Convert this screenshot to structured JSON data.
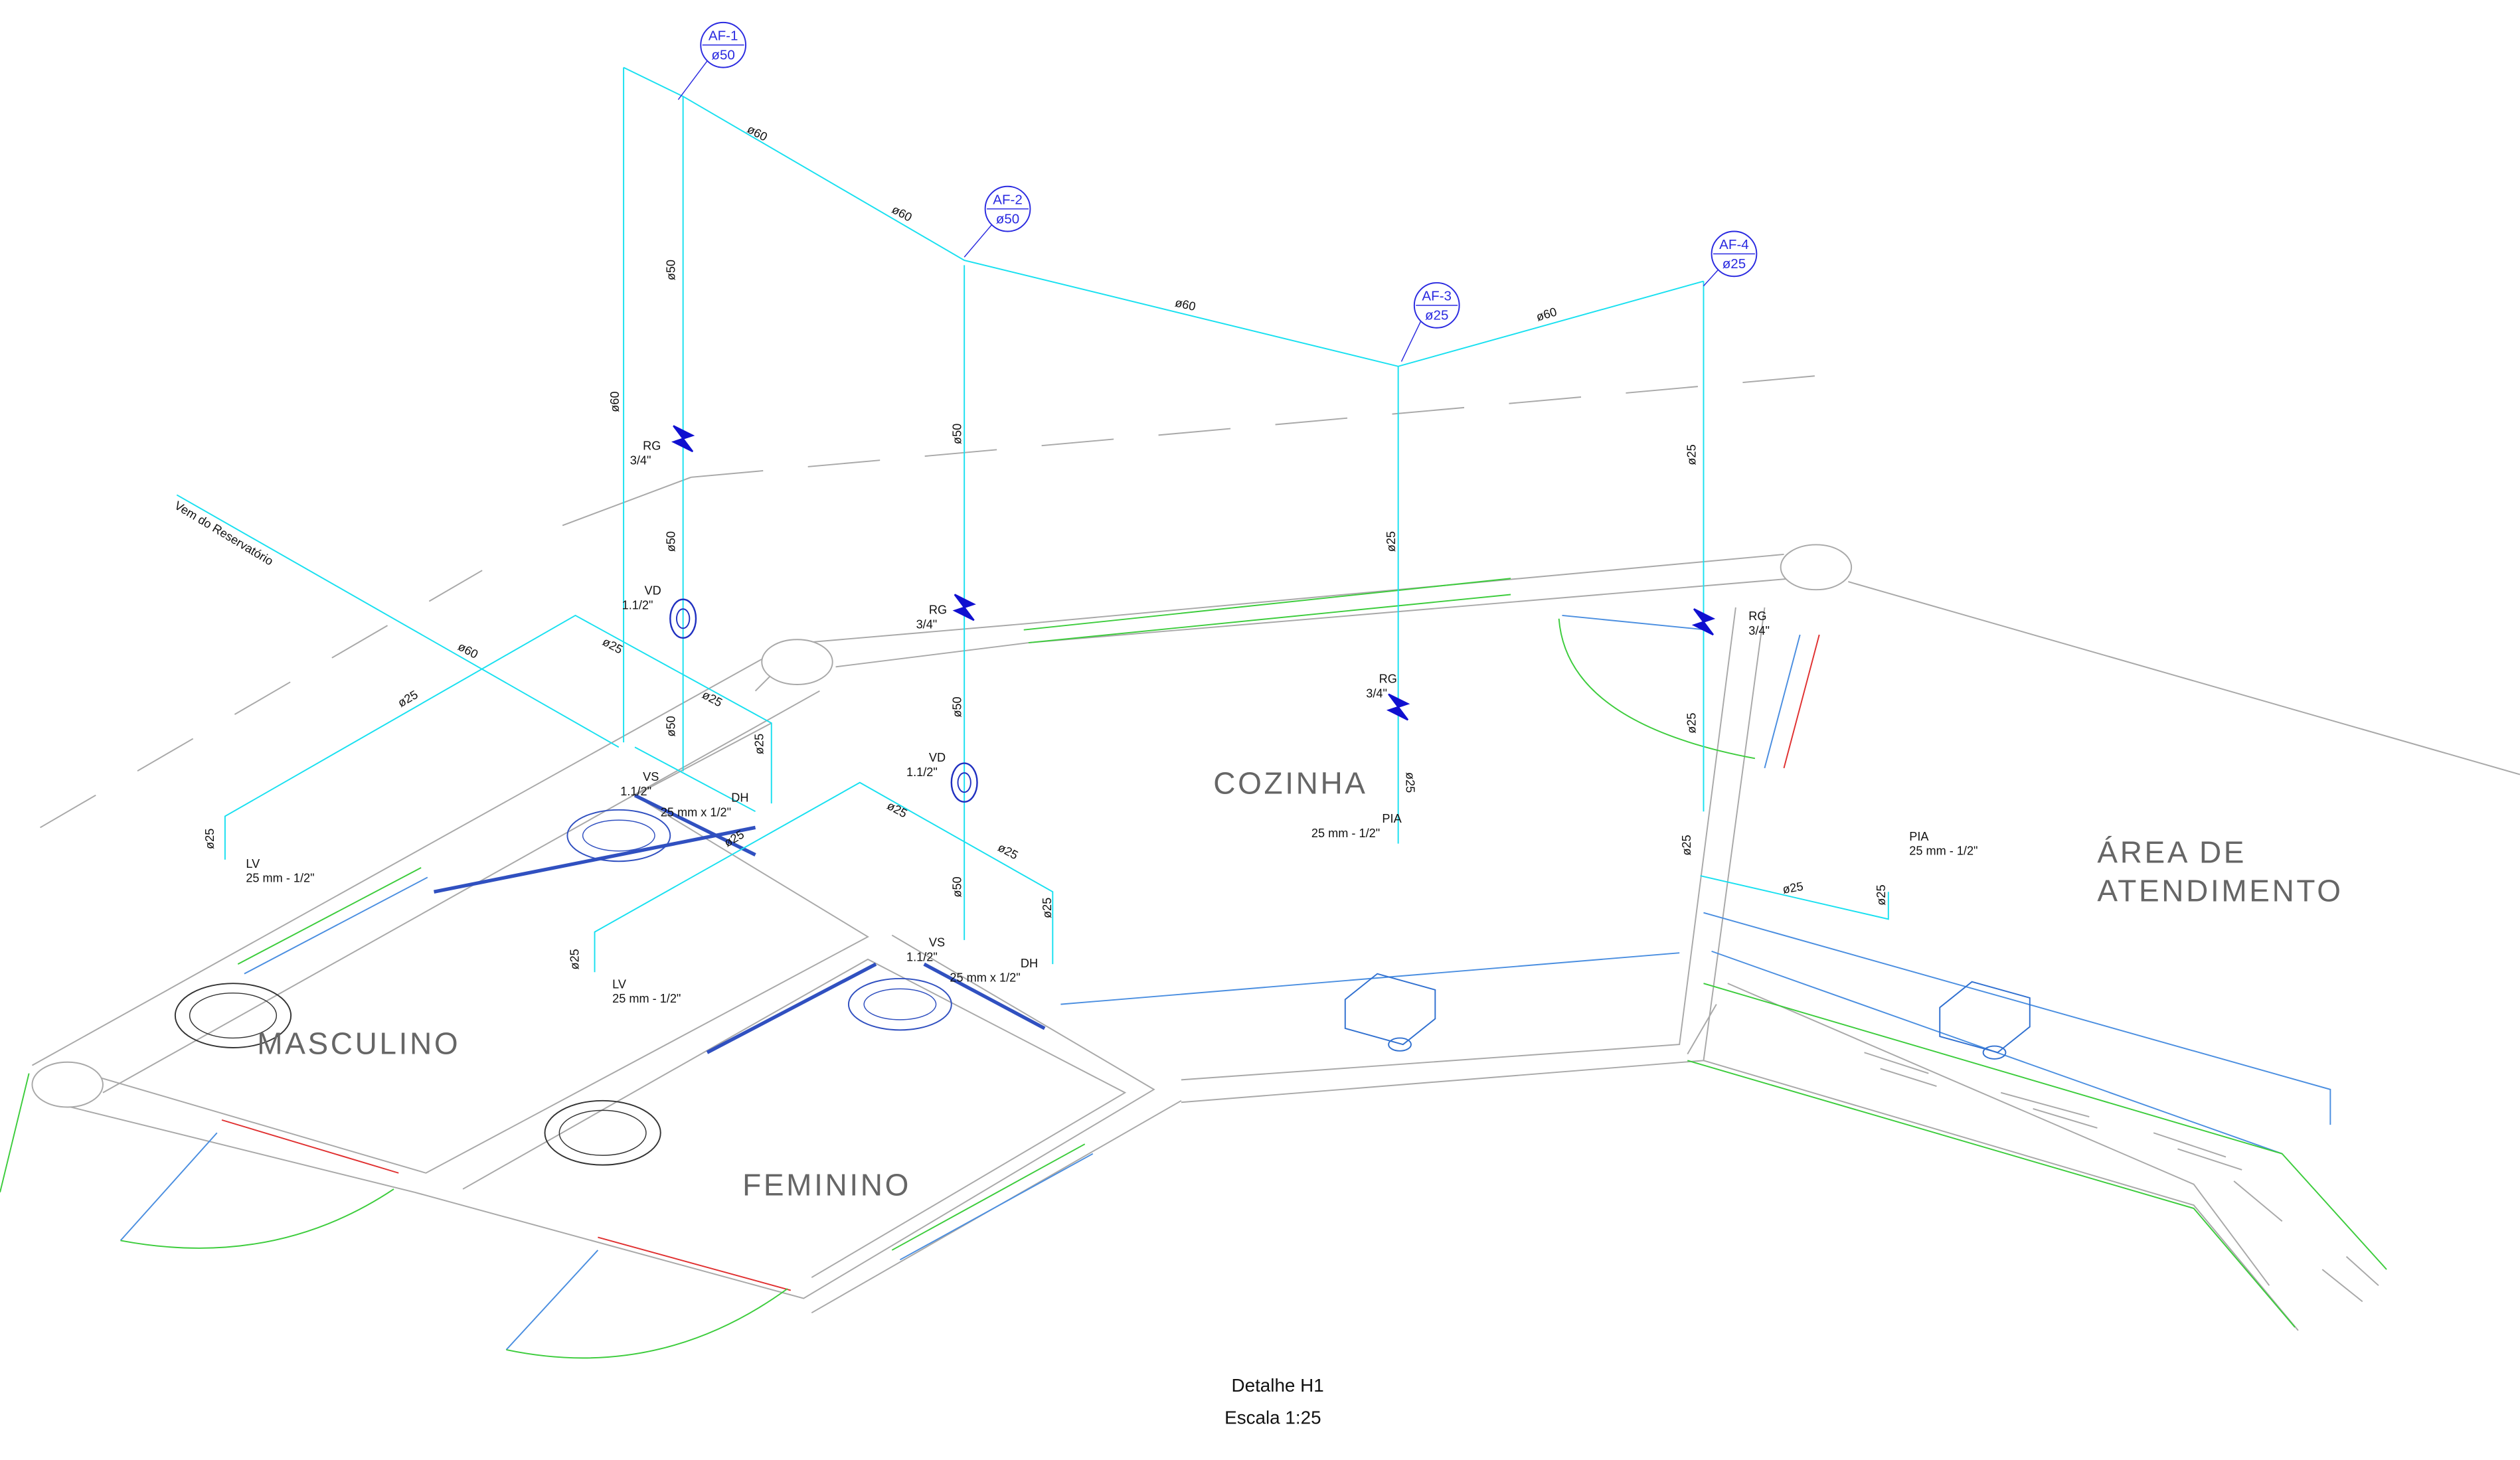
{
  "columns": [
    {
      "tag": "AF-1",
      "diameter": "ø50"
    },
    {
      "tag": "AF-2",
      "diameter": "ø50"
    },
    {
      "tag": "AF-3",
      "diameter": "ø25"
    },
    {
      "tag": "AF-4",
      "diameter": "ø25"
    }
  ],
  "pipe_labels": [
    "ø60",
    "ø60",
    "ø60",
    "ø60",
    "ø50",
    "ø60",
    "ø50",
    "ø50",
    "ø25",
    "ø25",
    "ø60",
    "ø25",
    "ø25",
    "ø50",
    "ø25",
    "ø25",
    "ø50",
    "ø25",
    "ø25",
    "ø25",
    "ø25",
    "ø25",
    "ø50",
    "ø25",
    "ø25",
    "ø25",
    "ø25",
    "ø25",
    "ø25"
  ],
  "fixtures": [
    {
      "code": "RG",
      "size": "3/4\""
    },
    {
      "code": "VD",
      "size": "1.1/2\""
    },
    {
      "code": "RG",
      "size": "3/4\""
    },
    {
      "code": "VD",
      "size": "1.1/2\""
    },
    {
      "code": "RG",
      "size": "3/4\""
    },
    {
      "code": "RG",
      "size": "3/4\""
    },
    {
      "code": "VS",
      "size": "1.1/2\""
    },
    {
      "code": "DH",
      "size": "25 mm x 1/2\""
    },
    {
      "code": "VS",
      "size": "1.1/2\""
    },
    {
      "code": "DH",
      "size": "25 mm x 1/2\""
    },
    {
      "code": "LV",
      "size": "25 mm - 1/2\""
    },
    {
      "code": "LV",
      "size": "25 mm - 1/2\""
    },
    {
      "code": "PIA",
      "size": "25 mm - 1/2\""
    },
    {
      "code": "PIA",
      "size": "25 mm - 1/2\""
    }
  ],
  "supply_note": "Vem do Reservatório",
  "rooms": {
    "masculino": "MASCULINO",
    "feminino": "FEMININO",
    "cozinha": "COZINHA",
    "area_line1": "ÁREA DE",
    "area_line2": "ATENDIMENTO"
  },
  "footer": {
    "detail": "Detalhe H1",
    "scale": "Escala 1:25"
  }
}
